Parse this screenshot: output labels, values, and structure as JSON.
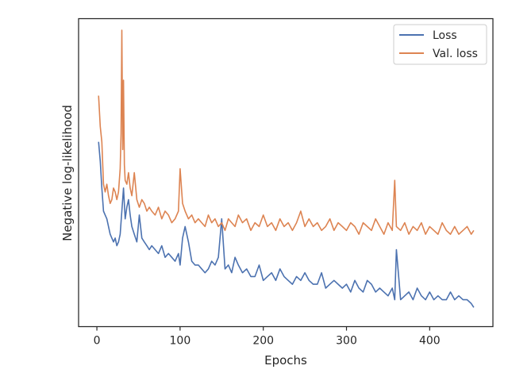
{
  "chart_data": {
    "type": "line",
    "title": "",
    "xlabel": "Epochs",
    "ylabel": "Negative log-likelihood",
    "xlim": [
      -22,
      476
    ],
    "ylim": [
      -0.4,
      7.6
    ],
    "xticks": [
      0,
      100,
      200,
      300,
      400
    ],
    "grid": false,
    "legend_position": "top-right",
    "series": [
      {
        "name": "Loss",
        "color": "#4c72b0",
        "x": [
          2,
          4,
          6,
          8,
          10,
          12,
          14,
          16,
          18,
          20,
          22,
          24,
          26,
          28,
          30,
          32,
          34,
          36,
          38,
          40,
          42,
          45,
          48,
          51,
          54,
          57,
          60,
          63,
          66,
          70,
          74,
          78,
          82,
          86,
          90,
          94,
          98,
          100,
          103,
          106,
          110,
          114,
          118,
          122,
          126,
          130,
          134,
          138,
          142,
          146,
          150,
          154,
          158,
          162,
          166,
          170,
          175,
          180,
          185,
          190,
          195,
          200,
          205,
          210,
          215,
          220,
          225,
          230,
          235,
          240,
          245,
          250,
          255,
          260,
          265,
          270,
          275,
          280,
          285,
          290,
          295,
          300,
          305,
          310,
          315,
          320,
          325,
          330,
          335,
          340,
          345,
          350,
          355,
          358,
          360,
          365,
          370,
          375,
          380,
          385,
          390,
          395,
          400,
          405,
          410,
          415,
          420,
          425,
          430,
          435,
          440,
          445,
          450,
          453
        ],
        "y": [
          4.4,
          3.9,
          3.2,
          2.6,
          2.5,
          2.4,
          2.2,
          2.0,
          1.9,
          1.8,
          1.9,
          1.7,
          1.8,
          2.0,
          2.6,
          3.2,
          2.4,
          2.7,
          2.9,
          2.5,
          2.2,
          2.0,
          1.8,
          2.5,
          1.9,
          1.8,
          1.7,
          1.6,
          1.7,
          1.6,
          1.5,
          1.7,
          1.4,
          1.5,
          1.4,
          1.3,
          1.5,
          1.2,
          1.9,
          2.2,
          1.8,
          1.3,
          1.2,
          1.2,
          1.1,
          1.0,
          1.1,
          1.3,
          1.2,
          1.4,
          2.4,
          1.1,
          1.2,
          1.0,
          1.4,
          1.2,
          1.0,
          1.1,
          0.9,
          0.9,
          1.2,
          0.8,
          0.9,
          1.0,
          0.8,
          1.1,
          0.9,
          0.8,
          0.7,
          0.9,
          0.8,
          1.0,
          0.8,
          0.7,
          0.7,
          1.0,
          0.6,
          0.7,
          0.8,
          0.7,
          0.6,
          0.7,
          0.5,
          0.8,
          0.6,
          0.5,
          0.8,
          0.7,
          0.5,
          0.6,
          0.5,
          0.4,
          0.6,
          0.3,
          1.6,
          0.3,
          0.4,
          0.5,
          0.3,
          0.6,
          0.4,
          0.3,
          0.5,
          0.3,
          0.4,
          0.3,
          0.3,
          0.5,
          0.3,
          0.4,
          0.3,
          0.3,
          0.2,
          0.1
        ]
      },
      {
        "name": "Val. loss",
        "color": "#dd8452",
        "x": [
          2,
          4,
          6,
          8,
          10,
          12,
          14,
          16,
          18,
          20,
          22,
          24,
          26,
          28,
          29,
          30,
          31,
          32,
          33,
          34,
          36,
          38,
          40,
          42,
          45,
          48,
          51,
          54,
          57,
          60,
          63,
          66,
          70,
          74,
          78,
          82,
          86,
          90,
          94,
          98,
          100,
          103,
          106,
          110,
          114,
          118,
          122,
          126,
          130,
          134,
          138,
          142,
          146,
          150,
          154,
          158,
          162,
          166,
          170,
          175,
          180,
          185,
          190,
          195,
          200,
          205,
          210,
          215,
          220,
          225,
          230,
          235,
          240,
          245,
          250,
          255,
          260,
          265,
          270,
          275,
          280,
          285,
          290,
          295,
          300,
          305,
          310,
          315,
          320,
          325,
          330,
          335,
          340,
          345,
          350,
          355,
          358,
          360,
          365,
          370,
          375,
          380,
          385,
          390,
          395,
          400,
          405,
          410,
          415,
          420,
          425,
          430,
          435,
          440,
          445,
          450,
          453
        ],
        "y": [
          5.6,
          4.8,
          4.4,
          3.3,
          3.1,
          3.3,
          3.0,
          2.8,
          2.9,
          3.2,
          3.1,
          2.9,
          3.1,
          3.7,
          4.6,
          7.3,
          4.2,
          6.0,
          3.8,
          3.4,
          3.3,
          3.6,
          3.2,
          3.0,
          3.6,
          2.9,
          2.7,
          2.9,
          2.8,
          2.6,
          2.7,
          2.6,
          2.5,
          2.7,
          2.4,
          2.6,
          2.5,
          2.3,
          2.4,
          2.6,
          3.7,
          2.8,
          2.6,
          2.4,
          2.5,
          2.3,
          2.4,
          2.3,
          2.2,
          2.5,
          2.3,
          2.4,
          2.2,
          2.3,
          2.1,
          2.4,
          2.3,
          2.2,
          2.5,
          2.3,
          2.4,
          2.1,
          2.3,
          2.2,
          2.5,
          2.2,
          2.3,
          2.1,
          2.4,
          2.2,
          2.3,
          2.1,
          2.3,
          2.6,
          2.2,
          2.4,
          2.2,
          2.3,
          2.1,
          2.2,
          2.4,
          2.1,
          2.3,
          2.2,
          2.1,
          2.3,
          2.2,
          2.0,
          2.3,
          2.2,
          2.1,
          2.4,
          2.2,
          2.0,
          2.3,
          2.1,
          3.4,
          2.2,
          2.1,
          2.3,
          2.0,
          2.2,
          2.1,
          2.3,
          2.0,
          2.2,
          2.1,
          2.0,
          2.3,
          2.1,
          2.0,
          2.2,
          2.0,
          2.1,
          2.2,
          2.0,
          2.1
        ]
      }
    ]
  }
}
